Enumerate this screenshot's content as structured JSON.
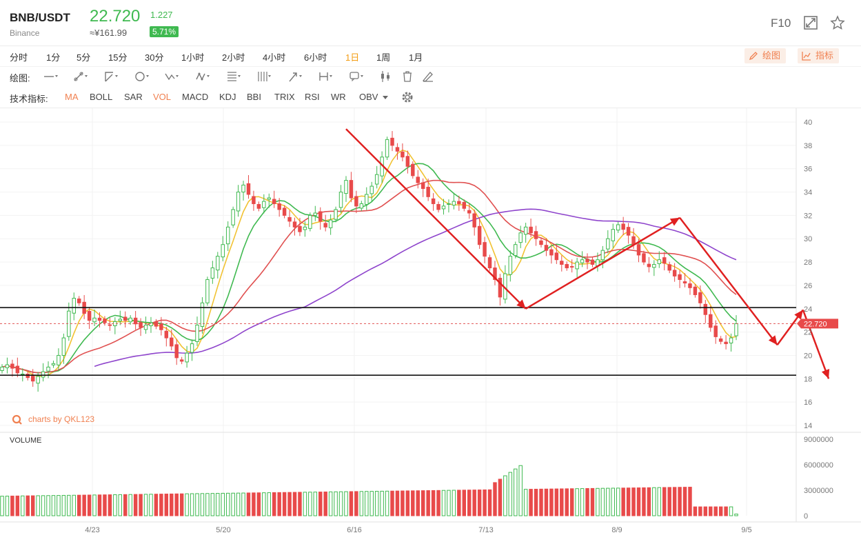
{
  "header": {
    "symbol": "BNB/USDT",
    "exchange": "Binance",
    "price": "22.720",
    "cny_price": "≈¥161.99",
    "change": "1.227",
    "change_pct": "5.71%",
    "f10_label": "F10",
    "accent_up": "#3fb950",
    "accent_down": "#e84a4a"
  },
  "timeframes": [
    "分时",
    "1分",
    "5分",
    "15分",
    "30分",
    "1小时",
    "2小时",
    "4小时",
    "6小时",
    "1日",
    "1周",
    "1月"
  ],
  "active_timeframe": "1日",
  "toolbar": {
    "draw_label": "绘图",
    "indicator_label": "指标"
  },
  "drawing": {
    "label": "绘图:"
  },
  "indicators": {
    "label": "技术指标:",
    "items": [
      "MA",
      "BOLL",
      "SAR",
      "VOL",
      "MACD",
      "KDJ",
      "BBI",
      "TRIX",
      "RSI",
      "WR",
      "OBV"
    ],
    "active": [
      "MA",
      "VOL"
    ]
  },
  "chart_data": {
    "type": "candlestick",
    "price_axis": {
      "ticks": [
        "40",
        "38",
        "36",
        "34",
        "32",
        "30",
        "28",
        "26",
        "24",
        "22",
        "20",
        "18",
        "16",
        "14"
      ],
      "range": [
        14,
        40
      ]
    },
    "volume_label": "VOLUME",
    "volume_axis": {
      "ticks": [
        "9000000",
        "6000000",
        "3000000",
        "0"
      ],
      "range": [
        0,
        9000000
      ]
    },
    "date_labels": [
      "4/23",
      "5/20",
      "6/16",
      "7/13",
      "8/9",
      "9/5"
    ],
    "current_price_label": "22.720",
    "watermark": "charts by QKL123",
    "support_level": 18.3,
    "resistance_level": 24.1,
    "current_price": 22.72,
    "closes": [
      19.0,
      19.2,
      18.9,
      18.5,
      18.4,
      18.1,
      17.8,
      18.2,
      18.6,
      19.0,
      19.3,
      20.0,
      21.5,
      23.8,
      24.9,
      24.5,
      23.6,
      23.0,
      23.2,
      23.0,
      22.8,
      22.6,
      22.9,
      23.1,
      23.0,
      23.2,
      22.7,
      22.4,
      22.6,
      22.8,
      22.5,
      22.2,
      21.5,
      20.8,
      19.8,
      19.5,
      20.2,
      21.0,
      22.6,
      24.5,
      26.5,
      27.5,
      28.5,
      29.5,
      31.0,
      32.5,
      34.0,
      34.6,
      33.8,
      33.0,
      32.6,
      33.2,
      33.5,
      33.0,
      32.5,
      32.0,
      31.5,
      31.0,
      30.6,
      31.0,
      32.0,
      32.2,
      31.5,
      31.0,
      31.6,
      32.5,
      34.0,
      35.0,
      33.5,
      32.8,
      33.0,
      33.8,
      34.5,
      35.5,
      37.0,
      38.5,
      38.0,
      37.5,
      37.0,
      36.2,
      35.4,
      34.8,
      34.3,
      33.6,
      33.0,
      32.5,
      32.8,
      33.0,
      33.2,
      33.0,
      32.6,
      32.2,
      31.0,
      29.5,
      28.5,
      27.5,
      26.5,
      25.0,
      27.0,
      28.5,
      29.5,
      30.5,
      31.0,
      30.5,
      30.0,
      29.5,
      29.0,
      28.6,
      28.2,
      27.8,
      27.5,
      27.6,
      28.0,
      28.2,
      28.0,
      27.8,
      28.2,
      29.0,
      30.0,
      30.8,
      31.2,
      30.8,
      30.3,
      29.5,
      28.6,
      28.0,
      27.6,
      27.8,
      28.2,
      27.9,
      27.3,
      26.8,
      26.5,
      26.2,
      25.8,
      25.2,
      24.5,
      23.5,
      22.4,
      21.6,
      21.2,
      21.0,
      21.5,
      22.72
    ],
    "ma_series": [
      {
        "name": "MA5",
        "color": "#f1c232"
      },
      {
        "name": "MA10",
        "color": "#3fb950"
      },
      {
        "name": "MA20",
        "color": "#e05050"
      },
      {
        "name": "MA60",
        "color": "#8e44cc"
      }
    ],
    "annotations": {
      "arrows": [
        {
          "from": [
            67,
            39.4
          ],
          "to": [
            102,
            24.0
          ]
        },
        {
          "from": [
            102,
            24.0
          ],
          "to": [
            132,
            31.8
          ]
        },
        {
          "from": [
            132,
            31.8
          ],
          "to": [
            151,
            20.9
          ]
        },
        {
          "from": [
            151,
            20.9
          ],
          "to": [
            156,
            23.9
          ]
        },
        {
          "from": [
            156,
            23.9
          ],
          "to": [
            161,
            18.0
          ]
        }
      ]
    }
  }
}
